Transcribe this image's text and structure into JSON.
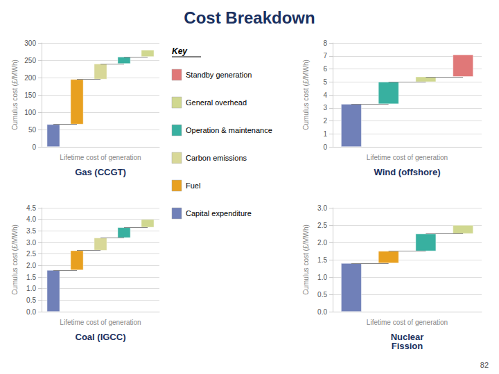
{
  "title": "Cost Breakdown",
  "annotations": [
    "Key",
    "82"
  ],
  "series": [
    {
      "name": "Standby generation",
      "color": "#e07878"
    },
    {
      "name": "General overhead",
      "color": "#d0d890"
    },
    {
      "name": "Operation & maintenance",
      "color": "#38b0a0"
    },
    {
      "name": "Carbon emissions",
      "color": "#d8d898"
    },
    {
      "name": "Fuel",
      "color": "#e8a020"
    },
    {
      "name": "Capital expenditure",
      "color": "#7080b8"
    }
  ],
  "chart_data": [
    {
      "type": "waterfall",
      "title": "Gas (CCGT)",
      "xlabel": "Lifetime cost of generation",
      "ylabel": "Cumulus cost (£/MWh)",
      "categories": [
        null,
        null,
        null,
        null,
        null
      ],
      "values": [
        65,
        130,
        45,
        20,
        20
      ],
      "colors": [
        "#7080b8",
        "#e8a020",
        "#d8d898",
        "#38b0a0",
        "#d0d890"
      ],
      "ylim": [
        0,
        300
      ],
      "yticks": [
        0,
        50,
        100,
        150,
        200,
        250,
        300
      ],
      "grid": true,
      "tick_labels": "y"
    },
    {
      "type": "waterfall",
      "title": "Coal (IGCC)",
      "xlabel": "Lifetime cost of generation",
      "ylabel": "Cumulus cost (£/MWh)",
      "categories": [
        null,
        null,
        null,
        null,
        null
      ],
      "values": [
        1.8,
        0.85,
        0.55,
        0.45,
        0.35
      ],
      "colors": [
        "#7080b8",
        "#e8a020",
        "#d8d898",
        "#38b0a0",
        "#d0d890"
      ],
      "ylim": [
        0,
        4.5
      ],
      "yticks": [
        {
          "value": 0,
          "label": "0.0"
        },
        0.5,
        {
          "value": 1,
          "label": "1.0"
        },
        1.5,
        {
          "value": 2,
          "label": "2.0"
        },
        2.5,
        {
          "value": 3,
          "label": "3.0"
        },
        3.5,
        {
          "value": 4,
          "label": "4.0"
        },
        4.5
      ],
      "grid": true,
      "tick_labels": "y"
    },
    {
      "type": "waterfall",
      "title": "Wind (offshore)",
      "xlabel": "Lifetime cost of generation",
      "ylabel": "Cumulus cost (£/MWh)",
      "categories": [
        null,
        null,
        null,
        null
      ],
      "values": [
        3.3,
        1.7,
        0.4,
        1.7
      ],
      "colors": [
        "#7080b8",
        "#38b0a0",
        "#d0d890",
        "#e07878"
      ],
      "ylim": [
        0,
        8.0
      ],
      "yticks": [
        0,
        1,
        2,
        3,
        4,
        5,
        6,
        7,
        8
      ],
      "grid": true,
      "tick_labels": "y"
    },
    {
      "type": "waterfall",
      "title": "Nuclear\nFission",
      "xlabel": "Lifetime cost of generation",
      "ylabel": "Cumulus cost (£/MWh)",
      "categories": [
        null,
        null,
        null,
        null
      ],
      "values": [
        1.4,
        0.35,
        0.5,
        0.25
      ],
      "colors": [
        "#7080b8",
        "#e8a020",
        "#38b0a0",
        "#d0d890"
      ],
      "ylim": [
        0,
        3.0
      ],
      "yticks": [
        {
          "value": 0,
          "label": "0.0"
        },
        0.5,
        {
          "value": 1,
          "label": "1.0"
        },
        1.5,
        {
          "value": 2,
          "label": "2.0"
        },
        2.5,
        {
          "value": 3,
          "label": "3.0"
        }
      ],
      "grid": true,
      "tick_labels": "y"
    }
  ]
}
